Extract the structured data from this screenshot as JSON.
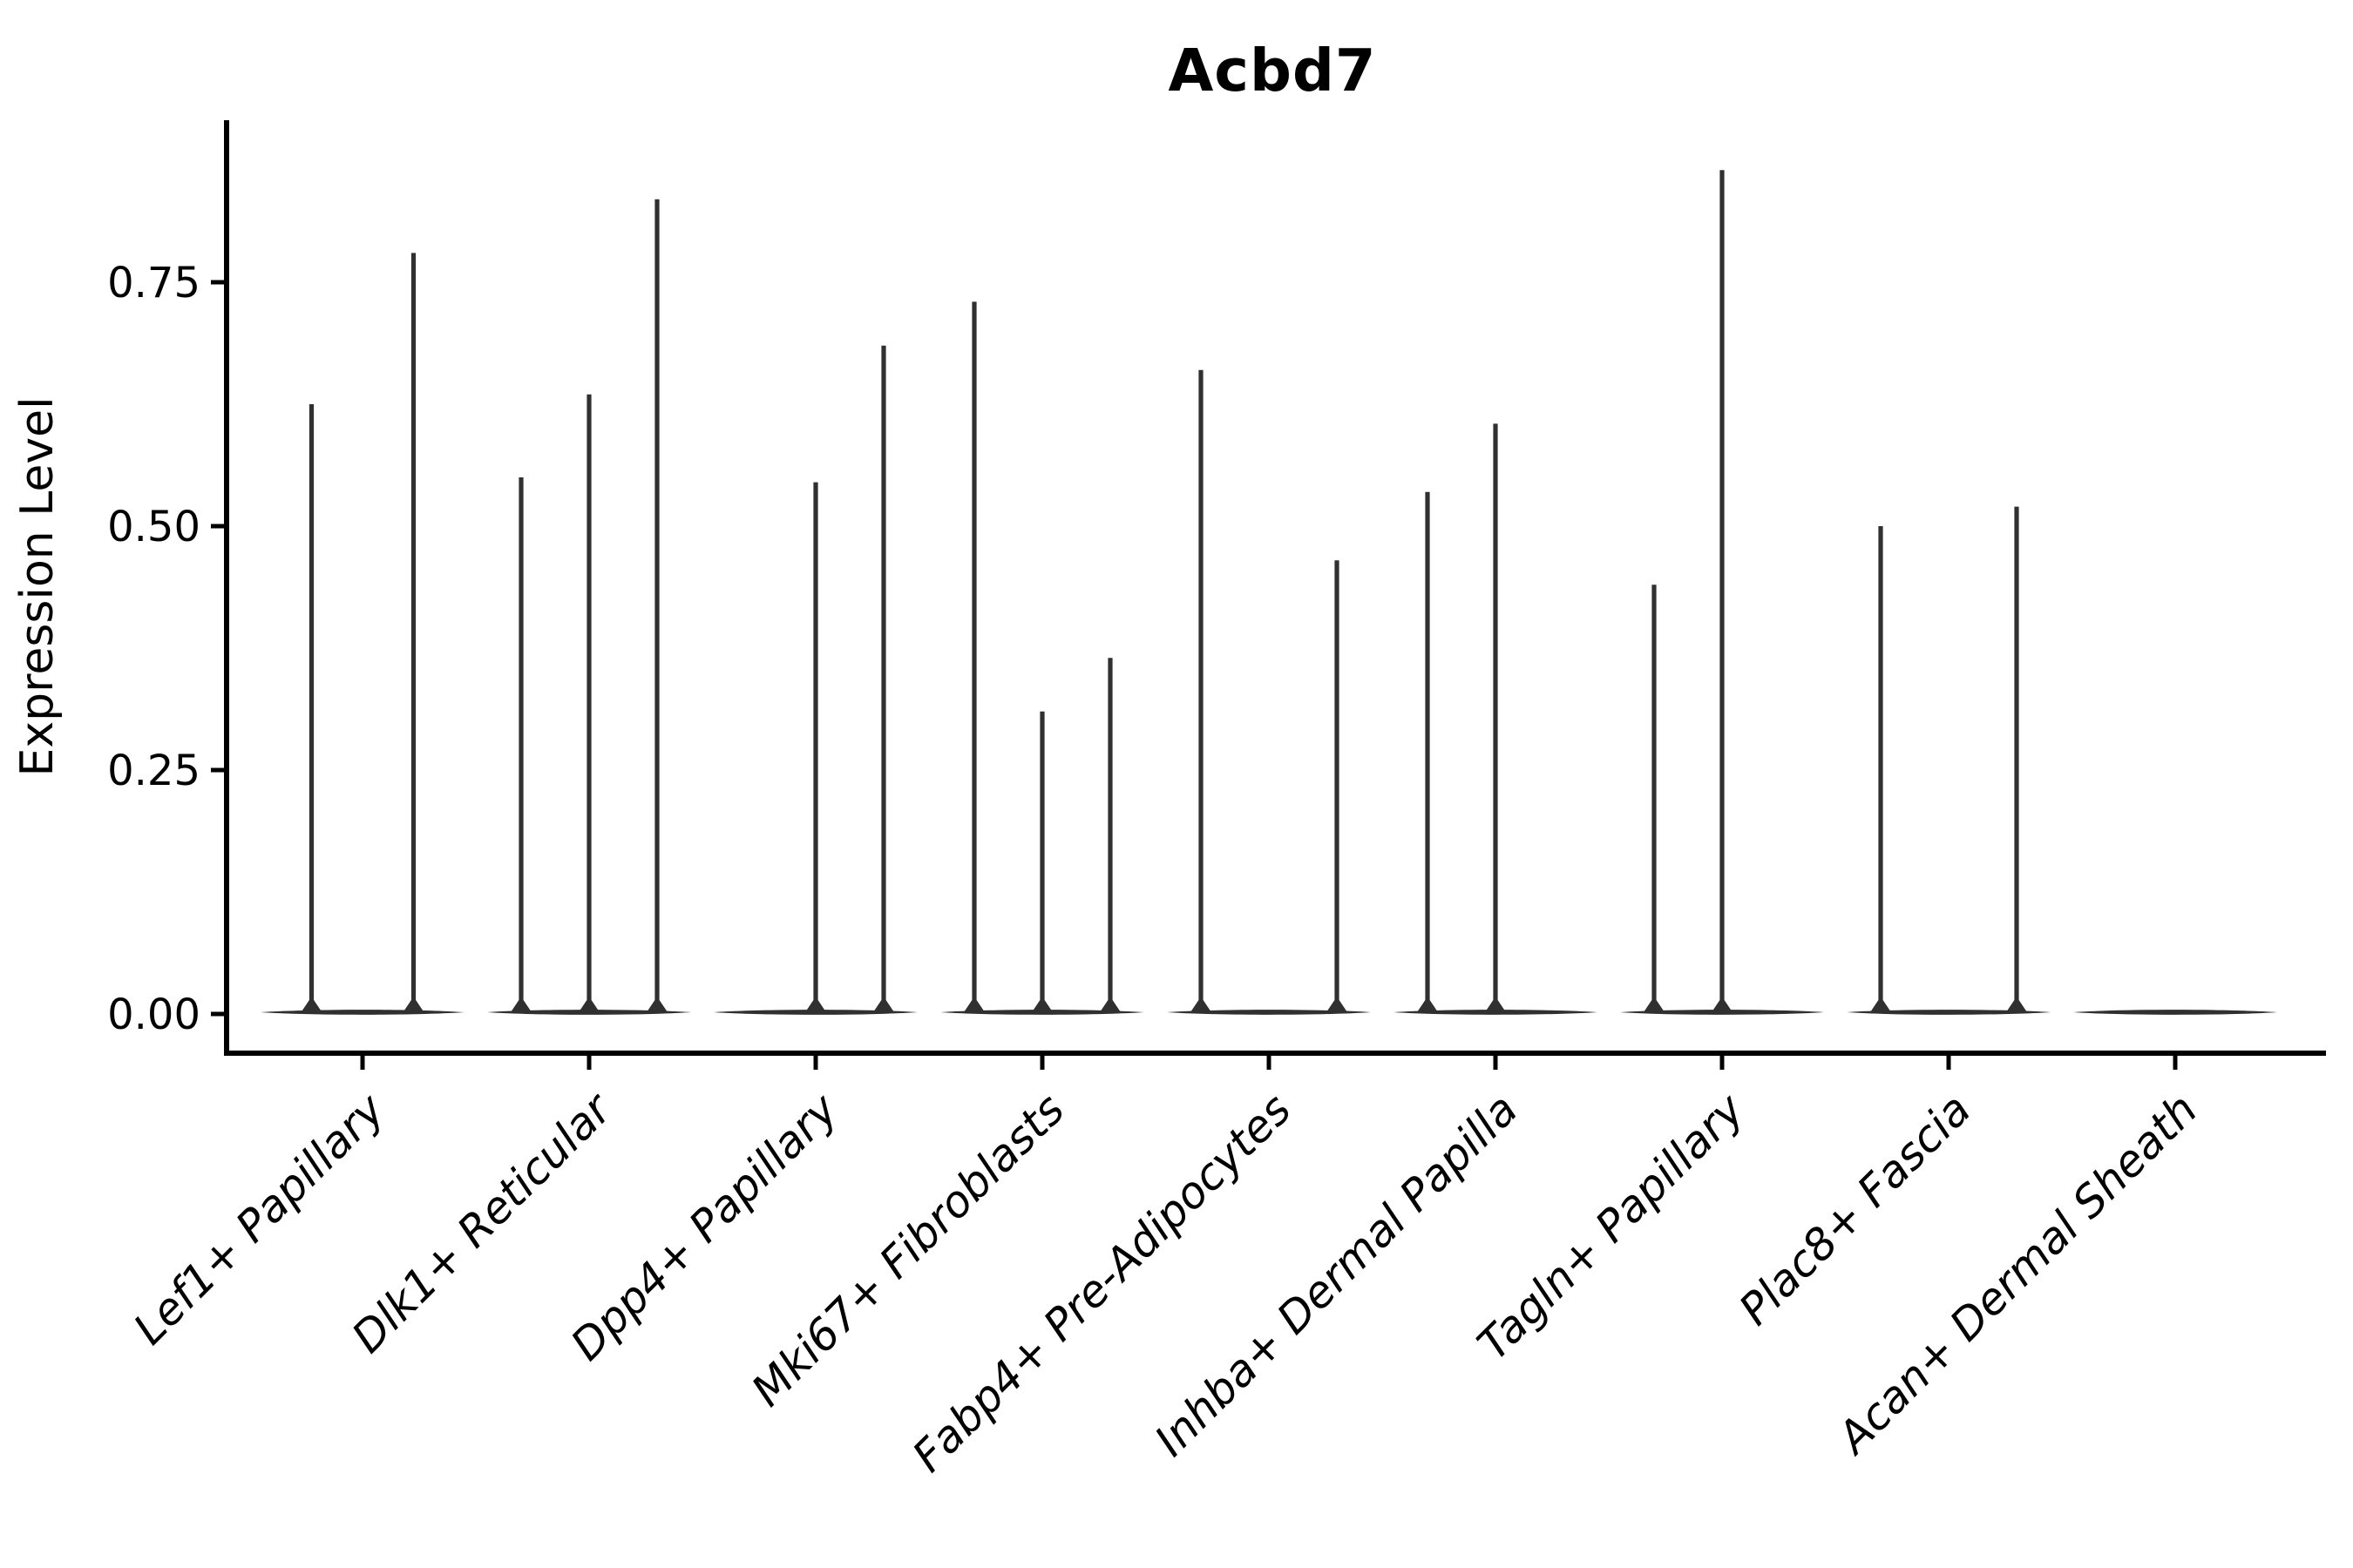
{
  "chart_data": {
    "type": "violin",
    "title": "Acbd7",
    "ylabel": "Expression Level",
    "xlabel": "",
    "background_color": "#ffffff",
    "axis_color": "#000000",
    "violin_color": "#303030",
    "grid": false,
    "legend": "none",
    "ytick_labels": [
      "0.00",
      "0.25",
      "0.50",
      "0.75"
    ],
    "ytick_values": [
      0.0,
      0.25,
      0.5,
      0.75
    ],
    "ylim": [
      -0.045,
      0.915
    ],
    "categories": [
      "Lef1+ Papillary",
      "Dlk1+ Reticular",
      "Dpp4+ Papillary",
      "Mki67+ Fibroblasts",
      "Fabp4+ Pre-Adipocytes",
      "Inhba+ Dermal Papilla",
      "Tagln+ Papillary",
      "Plac8+ Fascia",
      "Acan+ Dermal Sheath"
    ],
    "description": "Violin plot; every cell type shows a flat density mass at expression 0 with thin spikes rising to the maximum expression of small sub-populations.",
    "violins": [
      {
        "category": "Lef1+ Papillary",
        "baseline": 0.0,
        "spikes": [
          {
            "offset": -0.225,
            "max": 0.625
          },
          {
            "offset": 0.225,
            "max": 0.78
          }
        ]
      },
      {
        "category": "Dlk1+ Reticular",
        "baseline": 0.0,
        "spikes": [
          {
            "offset": -0.3,
            "max": 0.55
          },
          {
            "offset": 0.0,
            "max": 0.635
          },
          {
            "offset": 0.3,
            "max": 0.835
          }
        ]
      },
      {
        "category": "Dpp4+ Papillary",
        "baseline": 0.0,
        "spikes": [
          {
            "offset": 0.0,
            "max": 0.545
          },
          {
            "offset": 0.3,
            "max": 0.685
          }
        ]
      },
      {
        "category": "Mki67+ Fibroblasts",
        "baseline": 0.0,
        "spikes": [
          {
            "offset": -0.3,
            "max": 0.73
          },
          {
            "offset": 0.0,
            "max": 0.31
          },
          {
            "offset": 0.3,
            "max": 0.365
          }
        ]
      },
      {
        "category": "Fabp4+ Pre-Adipocytes",
        "baseline": 0.0,
        "spikes": [
          {
            "offset": -0.3,
            "max": 0.66
          },
          {
            "offset": 0.3,
            "max": 0.465
          }
        ]
      },
      {
        "category": "Inhba+ Dermal Papilla",
        "baseline": 0.0,
        "spikes": [
          {
            "offset": -0.3,
            "max": 0.535
          },
          {
            "offset": 0.0,
            "max": 0.605
          }
        ]
      },
      {
        "category": "Tagln+ Papillary",
        "baseline": 0.0,
        "spikes": [
          {
            "offset": -0.3,
            "max": 0.44
          },
          {
            "offset": 0.0,
            "max": 0.865
          }
        ]
      },
      {
        "category": "Plac8+ Fascia",
        "baseline": 0.0,
        "spikes": [
          {
            "offset": -0.3,
            "max": 0.5
          },
          {
            "offset": 0.3,
            "max": 0.52
          }
        ]
      },
      {
        "category": "Acan+ Dermal Sheath",
        "baseline": 0.0,
        "spikes": []
      }
    ]
  }
}
